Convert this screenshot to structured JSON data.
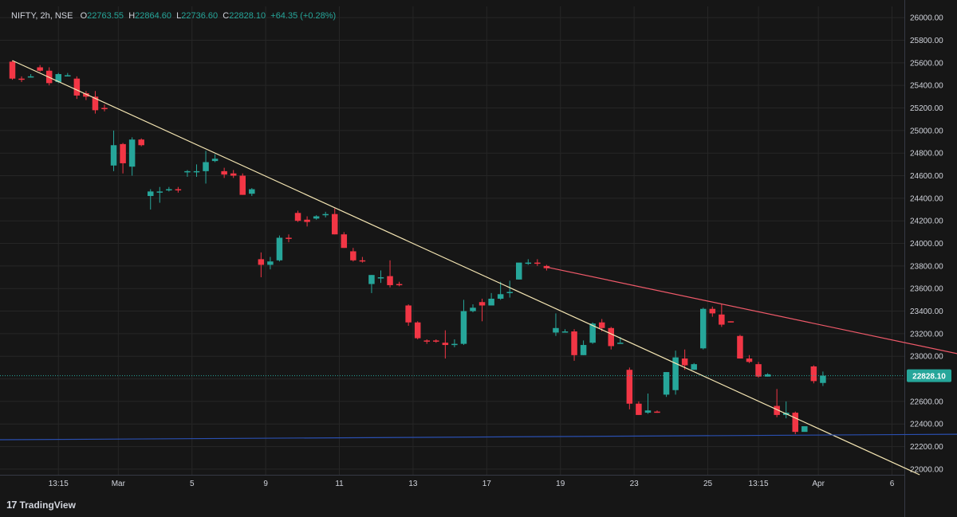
{
  "header": {
    "symbol": "NIFTY, 2h, NSE",
    "o_label": "O",
    "o_value": "22763.55",
    "h_label": "H",
    "h_value": "22864.60",
    "l_label": "L",
    "l_value": "22736.60",
    "c_label": "C",
    "c_value": "22828.10",
    "change": "+64.35 (+0.28%)"
  },
  "brand": {
    "name": "TradingView",
    "logo": "17"
  },
  "colors": {
    "background": "#161616",
    "grid": "#262626",
    "up": "#26a69a",
    "down": "#f23645",
    "axis_text": "#d1d4dc",
    "trend_yellow": "#f5e6b3",
    "trend_red": "#f05a6a",
    "trend_blue": "#2a4fb0",
    "price_label_bg": "#26a69a"
  },
  "chart_data": {
    "type": "candlestick",
    "ylim": [
      21950,
      26100
    ],
    "y_ticks": [
      22000,
      22200,
      22400,
      22600,
      22800,
      23000,
      23200,
      23400,
      23600,
      23800,
      24000,
      24200,
      24400,
      24600,
      24800,
      25000,
      25200,
      25400,
      25600,
      25800,
      26000
    ],
    "y_tick_labels": [
      "22000.00",
      "22200.00",
      "22400.00",
      "22600.00",
      "22800.00",
      "23000.00",
      "23200.00",
      "23400.00",
      "23600.00",
      "23800.00",
      "24000.00",
      "24200.00",
      "24400.00",
      "24600.00",
      "24800.00",
      "25000.00",
      "25200.00",
      "25400.00",
      "25600.00",
      "25800.00",
      "26000.00"
    ],
    "x_ticks": [
      {
        "i": 5,
        "label": "13:15"
      },
      {
        "i": 11.5,
        "label": "Mar"
      },
      {
        "i": 19.5,
        "label": "5"
      },
      {
        "i": 27.5,
        "label": "9"
      },
      {
        "i": 35.5,
        "label": "11"
      },
      {
        "i": 43.5,
        "label": "13"
      },
      {
        "i": 51.5,
        "label": "17"
      },
      {
        "i": 59.5,
        "label": "19"
      },
      {
        "i": 67.5,
        "label": "23"
      },
      {
        "i": 75.5,
        "label": "25"
      },
      {
        "i": 81,
        "label": "13:15"
      },
      {
        "i": 87.5,
        "label": "Apr"
      },
      {
        "i": 95.5,
        "label": "6"
      }
    ],
    "candles": [
      [
        25610,
        25620,
        25450,
        25460
      ],
      [
        25460,
        25480,
        25430,
        25450
      ],
      [
        25480,
        25500,
        25470,
        25480
      ],
      [
        25560,
        25580,
        25520,
        25530
      ],
      [
        25530,
        25560,
        25400,
        25420
      ],
      [
        25430,
        25510,
        25420,
        25500
      ],
      [
        25490,
        25510,
        25480,
        25490
      ],
      [
        25460,
        25480,
        25280,
        25310
      ],
      [
        25330,
        25350,
        25270,
        25300
      ],
      [
        25300,
        25350,
        25150,
        25180
      ],
      [
        25200,
        25230,
        25170,
        25190
      ],
      [
        24690,
        25000,
        24640,
        24870
      ],
      [
        24880,
        24890,
        24620,
        24710
      ],
      [
        24680,
        24940,
        24600,
        24920
      ],
      [
        24920,
        24930,
        24860,
        24870
      ],
      [
        24420,
        24480,
        24300,
        24460
      ],
      [
        24450,
        24500,
        24360,
        24460
      ],
      [
        24470,
        24500,
        24460,
        24480
      ],
      [
        24480,
        24500,
        24450,
        24470
      ],
      [
        24630,
        24650,
        24590,
        24640
      ],
      [
        24640,
        24700,
        24590,
        24640
      ],
      [
        24640,
        24820,
        24530,
        24720
      ],
      [
        24730,
        24790,
        24720,
        24750
      ],
      [
        24640,
        24670,
        24580,
        24610
      ],
      [
        24620,
        24650,
        24580,
        24600
      ],
      [
        24600,
        24620,
        24430,
        24430
      ],
      [
        24440,
        24490,
        24420,
        24480
      ],
      [
        23860,
        23920,
        23700,
        23810
      ],
      [
        23810,
        23880,
        23770,
        23840
      ],
      [
        23850,
        24070,
        23840,
        24050
      ],
      [
        24050,
        24080,
        24010,
        24040
      ],
      [
        24270,
        24290,
        24190,
        24200
      ],
      [
        24210,
        24240,
        24150,
        24190
      ],
      [
        24220,
        24250,
        24210,
        24240
      ],
      [
        24250,
        24280,
        24230,
        24260
      ],
      [
        24260,
        24310,
        24080,
        24080
      ],
      [
        24080,
        24100,
        23960,
        23960
      ],
      [
        23930,
        23960,
        23840,
        23850
      ],
      [
        23850,
        23880,
        23830,
        23840
      ],
      [
        23640,
        23720,
        23560,
        23720
      ],
      [
        23700,
        23760,
        23650,
        23700
      ],
      [
        23710,
        23850,
        23610,
        23630
      ],
      [
        23640,
        23660,
        23620,
        23630
      ],
      [
        23450,
        23460,
        23270,
        23300
      ],
      [
        23300,
        23310,
        23150,
        23160
      ],
      [
        23140,
        23150,
        23110,
        23130
      ],
      [
        23140,
        23150,
        23120,
        23130
      ],
      [
        23120,
        23230,
        22980,
        23100
      ],
      [
        23100,
        23150,
        23080,
        23110
      ],
      [
        23110,
        23500,
        23100,
        23400
      ],
      [
        23400,
        23460,
        23390,
        23430
      ],
      [
        23480,
        23510,
        23310,
        23450
      ],
      [
        23450,
        23560,
        23450,
        23510
      ],
      [
        23510,
        23660,
        23500,
        23550
      ],
      [
        23560,
        23670,
        23520,
        23570
      ],
      [
        23680,
        23800,
        23680,
        23830
      ],
      [
        23820,
        23860,
        23810,
        23830
      ],
      [
        23830,
        23860,
        23800,
        23820
      ],
      [
        23800,
        23810,
        23760,
        23780
      ],
      [
        23210,
        23380,
        23180,
        23250
      ],
      [
        23220,
        23240,
        23210,
        23220
      ],
      [
        23220,
        23240,
        22960,
        23010
      ],
      [
        23010,
        23140,
        23010,
        23100
      ],
      [
        23120,
        23300,
        23110,
        23290
      ],
      [
        23300,
        23330,
        23220,
        23250
      ],
      [
        23250,
        23260,
        23060,
        23090
      ],
      [
        23110,
        23170,
        23120,
        23120
      ],
      [
        22880,
        22900,
        22530,
        22580
      ],
      [
        22580,
        22600,
        22480,
        22480
      ],
      [
        22500,
        22670,
        22490,
        22520
      ],
      [
        22510,
        22520,
        22500,
        22500
      ],
      [
        22660,
        22860,
        22640,
        22860
      ],
      [
        22700,
        23050,
        22660,
        22990
      ],
      [
        22980,
        23060,
        22880,
        22920
      ],
      [
        22880,
        22940,
        22880,
        22930
      ],
      [
        23070,
        23430,
        23060,
        23420
      ],
      [
        23420,
        23440,
        23350,
        23380
      ],
      [
        23370,
        23460,
        23260,
        23280
      ],
      [
        23310,
        23310,
        23300,
        23300
      ],
      [
        23180,
        23190,
        22980,
        22980
      ],
      [
        22980,
        23010,
        22940,
        22950
      ],
      [
        22930,
        22950,
        22810,
        22820
      ],
      [
        22820,
        22850,
        22820,
        22840
      ],
      [
        22560,
        22710,
        22460,
        22480
      ],
      [
        22480,
        22600,
        22450,
        22500
      ],
      [
        22500,
        22510,
        22310,
        22330
      ],
      [
        22330,
        22380,
        22350,
        22380
      ],
      [
        22910,
        22920,
        22760,
        22780
      ],
      [
        22763.55,
        22864.6,
        22736.6,
        22828.1
      ]
    ],
    "trendlines": [
      {
        "color": "trend_yellow",
        "from": [
          0,
          25620
        ],
        "to": [
          98.5,
          21950
        ]
      },
      {
        "color": "trend_red",
        "from": [
          58,
          23790
        ],
        "to": [
          104.5,
          22990
        ]
      },
      {
        "color": "trend_blue",
        "from": [
          -2,
          22260
        ],
        "to": [
          104.5,
          22310
        ]
      }
    ],
    "last_price": 22828.1,
    "last_price_label": "22828.10"
  }
}
